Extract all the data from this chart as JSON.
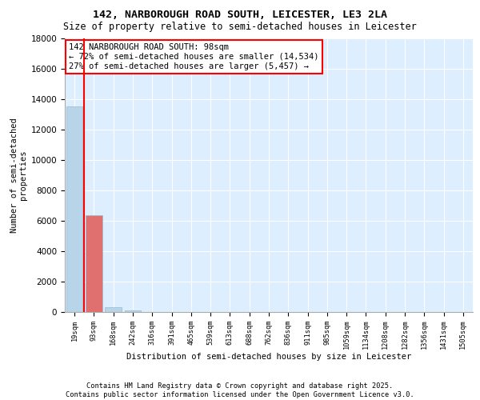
{
  "title_line1": "142, NARBOROUGH ROAD SOUTH, LEICESTER, LE3 2LA",
  "title_line2": "Size of property relative to semi-detached houses in Leicester",
  "xlabel": "Distribution of semi-detached houses by size in Leicester",
  "ylabel": "Number of semi-detached\nproperties",
  "categories": [
    "19sqm",
    "93sqm",
    "168sqm",
    "242sqm",
    "316sqm",
    "391sqm",
    "465sqm",
    "539sqm",
    "613sqm",
    "688sqm",
    "762sqm",
    "836sqm",
    "911sqm",
    "985sqm",
    "1059sqm",
    "1134sqm",
    "1208sqm",
    "1282sqm",
    "1356sqm",
    "1431sqm",
    "1505sqm"
  ],
  "values": [
    13500,
    6350,
    330,
    80,
    10,
    0,
    0,
    0,
    0,
    0,
    0,
    0,
    0,
    0,
    0,
    0,
    0,
    0,
    0,
    0,
    0
  ],
  "bar_color_left": "#b8d4e8",
  "bar_color_right": "#c8dde8",
  "subject_bar_color": "#e07070",
  "subject_bar_index": 1,
  "annotation_title": "142 NARBOROUGH ROAD SOUTH: 98sqm",
  "annotation_line2": "← 72% of semi-detached houses are smaller (14,534)",
  "annotation_line3": "27% of semi-detached houses are larger (5,457) →",
  "ylim": [
    0,
    18000
  ],
  "yticks": [
    0,
    2000,
    4000,
    6000,
    8000,
    10000,
    12000,
    14000,
    16000,
    18000
  ],
  "footer_line1": "Contains HM Land Registry data © Crown copyright and database right 2025.",
  "footer_line2": "Contains public sector information licensed under the Open Government Licence v3.0.",
  "background_color": "#ddeeff",
  "plot_bg_color": "#ddeeff",
  "bar_edge_color": "#99bbcc",
  "red_line_x": 1.5,
  "fig_width": 6.0,
  "fig_height": 5.0,
  "dpi": 100
}
